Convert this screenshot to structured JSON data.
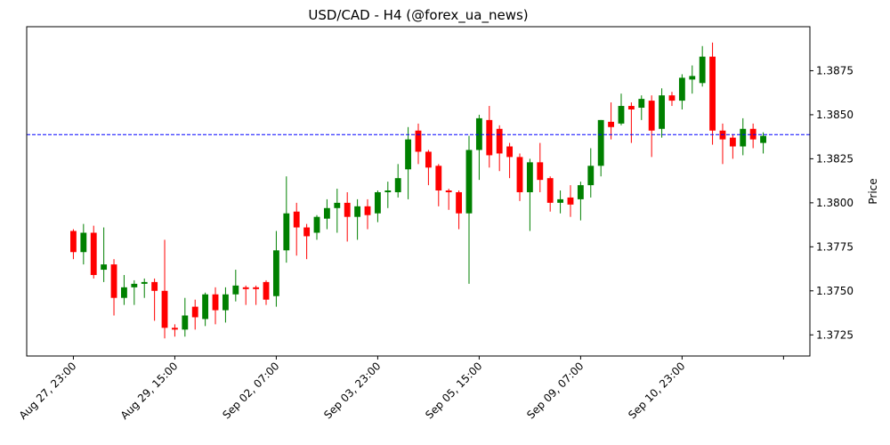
{
  "chart_data": {
    "type": "candlestick",
    "title": "USD/CAD - H4 (@forex_ua_news)",
    "ylabel": "Price",
    "up_color": "green",
    "down_color": "red",
    "ylim": [
      1.3713,
      1.39
    ],
    "yticks": [
      1.3725,
      {
        "value": 1.375,
        "label": "1.3750"
      },
      1.3775,
      {
        "value": 1.38,
        "label": "1.3800"
      },
      1.3825,
      {
        "value": 1.385,
        "label": "1.3850"
      },
      1.3875
    ],
    "xlim": [
      -4.6,
      72.6
    ],
    "xticks": [
      {
        "value": 0,
        "label": "Aug 27, 23:00"
      },
      {
        "value": 10,
        "label": "Aug 29, 15:00"
      },
      {
        "value": 20,
        "label": "Sep 02, 07:00"
      },
      {
        "value": 30,
        "label": "Sep 03, 23:00"
      },
      {
        "value": 40,
        "label": "Sep 05, 15:00"
      },
      {
        "value": 50,
        "label": "Sep 09, 07:00"
      },
      {
        "value": 60,
        "label": "Sep 10, 23:00"
      },
      {
        "value": 70,
        "label": null
      }
    ],
    "hline": {
      "value": 1.38387,
      "color": "blue",
      "style": "dashed"
    },
    "open": [
      1.3784,
      1.3772,
      1.3783,
      1.3762,
      1.3765,
      1.3746,
      1.3752,
      1.3754,
      1.3755,
      1.375,
      1.3729,
      1.3728,
      1.3741,
      1.3734,
      1.3748,
      1.3739,
      1.3748,
      1.3752,
      1.3752,
      1.3755,
      1.3747,
      1.3773,
      1.3795,
      1.3786,
      1.3783,
      1.3791,
      1.3797,
      1.38,
      1.3792,
      1.3798,
      1.3794,
      1.3806,
      1.3806,
      1.3819,
      1.3841,
      1.3829,
      1.3821,
      1.3807,
      1.3806,
      1.3794,
      1.383,
      1.3847,
      1.3842,
      1.3832,
      1.3826,
      1.3806,
      1.3823,
      1.3814,
      1.38,
      1.3803,
      1.3802,
      1.381,
      1.3821,
      1.3846,
      1.3845,
      1.3855,
      1.3854,
      1.3858,
      1.3842,
      1.3861,
      1.3858,
      1.387,
      1.3868,
      1.3883,
      1.3841,
      1.3837,
      1.3832,
      1.3842,
      1.3834
    ],
    "high": [
      1.3785,
      1.3788,
      1.3787,
      1.3786,
      1.3768,
      1.3759,
      1.3756,
      1.3757,
      1.3757,
      1.3779,
      1.3731,
      1.3746,
      1.3745,
      1.3749,
      1.3752,
      1.3752,
      1.3762,
      1.3753,
      1.3753,
      1.3756,
      1.3784,
      1.3815,
      1.38,
      1.3788,
      1.3793,
      1.3802,
      1.3808,
      1.3806,
      1.3802,
      1.3802,
      1.3807,
      1.3812,
      1.3822,
      1.3843,
      1.3845,
      1.383,
      1.3822,
      1.3808,
      1.3807,
      1.3838,
      1.385,
      1.3855,
      1.3844,
      1.3834,
      1.3828,
      1.3825,
      1.3834,
      1.3815,
      1.3807,
      1.381,
      1.3812,
      1.3831,
      1.3847,
      1.3857,
      1.3862,
      1.3857,
      1.3861,
      1.3861,
      1.3865,
      1.3863,
      1.3873,
      1.3878,
      1.3889,
      1.3891,
      1.3845,
      1.3839,
      1.3848,
      1.3845,
      1.384
    ],
    "low": [
      1.3768,
      1.3765,
      1.3757,
      1.3755,
      1.3736,
      1.3742,
      1.3742,
      1.3746,
      1.3733,
      1.3723,
      1.3724,
      1.3724,
      1.3728,
      1.373,
      1.3731,
      1.3732,
      1.3744,
      1.3742,
      1.3742,
      1.3742,
      1.3741,
      1.3766,
      1.377,
      1.3768,
      1.3779,
      1.3785,
      1.3783,
      1.3778,
      1.3779,
      1.3785,
      1.3789,
      1.3797,
      1.3803,
      1.3802,
      1.3822,
      1.381,
      1.3798,
      1.3796,
      1.3785,
      1.3754,
      1.3813,
      1.382,
      1.3818,
      1.3814,
      1.3801,
      1.3784,
      1.3806,
      1.3795,
      1.3794,
      1.3792,
      1.379,
      1.3803,
      1.3815,
      1.3836,
      1.3844,
      1.3834,
      1.3847,
      1.3826,
      1.3837,
      1.3855,
      1.3853,
      1.3862,
      1.3866,
      1.3833,
      1.3822,
      1.3825,
      1.3827,
      1.3831,
      1.3828
    ],
    "close": [
      1.3772,
      1.3783,
      1.3759,
      1.3765,
      1.3746,
      1.3752,
      1.3754,
      1.3755,
      1.375,
      1.3729,
      1.3728,
      1.3736,
      1.3735,
      1.3748,
      1.3739,
      1.3748,
      1.3753,
      1.3751,
      1.3751,
      1.3745,
      1.3773,
      1.3794,
      1.3786,
      1.3781,
      1.3792,
      1.3797,
      1.38,
      1.3792,
      1.3798,
      1.3793,
      1.3806,
      1.3807,
      1.3814,
      1.3836,
      1.3829,
      1.382,
      1.3807,
      1.3806,
      1.3794,
      1.383,
      1.3848,
      1.3827,
      1.3828,
      1.3826,
      1.3806,
      1.3823,
      1.3813,
      1.38,
      1.3802,
      1.3799,
      1.381,
      1.3821,
      1.3847,
      1.3843,
      1.3855,
      1.3853,
      1.3859,
      1.3841,
      1.3861,
      1.3858,
      1.3871,
      1.3872,
      1.3883,
      1.3841,
      1.3836,
      1.3832,
      1.3842,
      1.3836,
      1.3838
    ]
  }
}
